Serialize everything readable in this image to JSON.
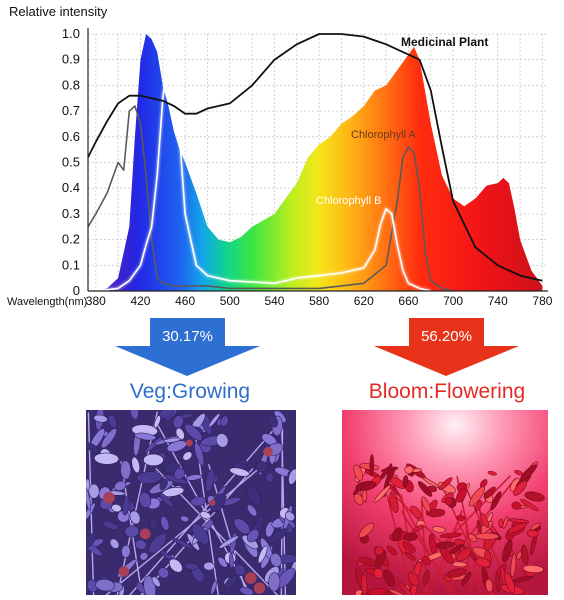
{
  "chart_data": {
    "type": "line",
    "ylabel": "Relative intensity",
    "xlabel": "Wavelength(nm)",
    "xlim": [
      373,
      785
    ],
    "ylim": [
      0,
      1.0
    ],
    "x_ticks": [
      380,
      420,
      460,
      500,
      540,
      580,
      620,
      660,
      700,
      740,
      780
    ],
    "y_ticks": [
      "0",
      "0.1",
      "0.2",
      "0.3",
      "0.4",
      "0.5",
      "0.6",
      "0.7",
      "0.8",
      "0.9",
      "1.0"
    ],
    "grid": true,
    "series": [
      {
        "name": "",
        "role": "LED spectrum (rainbow-filled area)",
        "x": [
          380,
          390,
          400,
          410,
          415,
          420,
          425,
          430,
          435,
          440,
          445,
          450,
          455,
          460,
          470,
          480,
          490,
          500,
          510,
          520,
          540,
          560,
          570,
          580,
          590,
          600,
          610,
          620,
          630,
          640,
          650,
          660,
          665,
          670,
          680,
          690,
          700,
          710,
          720,
          730,
          740,
          745,
          750,
          755,
          760,
          770,
          780
        ],
        "y": [
          0,
          0.01,
          0.05,
          0.25,
          0.6,
          0.9,
          1.0,
          0.98,
          0.93,
          0.8,
          0.72,
          0.62,
          0.55,
          0.5,
          0.38,
          0.25,
          0.2,
          0.19,
          0.21,
          0.25,
          0.3,
          0.42,
          0.52,
          0.57,
          0.6,
          0.65,
          0.68,
          0.72,
          0.78,
          0.8,
          0.86,
          0.92,
          0.95,
          0.9,
          0.65,
          0.45,
          0.36,
          0.33,
          0.36,
          0.41,
          0.42,
          0.44,
          0.42,
          0.32,
          0.2,
          0.08,
          0.02
        ]
      },
      {
        "name": "Medicinal Plant",
        "x": [
          373,
          380,
          390,
          400,
          410,
          420,
          430,
          440,
          450,
          460,
          470,
          480,
          500,
          520,
          540,
          560,
          580,
          600,
          620,
          640,
          650,
          660,
          670,
          680,
          690,
          700,
          720,
          740,
          760,
          780
        ],
        "y": [
          0.52,
          0.58,
          0.66,
          0.73,
          0.76,
          0.76,
          0.75,
          0.74,
          0.72,
          0.69,
          0.69,
          0.71,
          0.73,
          0.8,
          0.9,
          0.96,
          1.0,
          1.0,
          0.99,
          0.96,
          0.94,
          0.92,
          0.9,
          0.78,
          0.56,
          0.35,
          0.17,
          0.1,
          0.06,
          0.04
        ]
      },
      {
        "name": "Chlorophyll A",
        "x": [
          373,
          380,
          390,
          400,
          405,
          410,
          415,
          420,
          425,
          430,
          435,
          440,
          450,
          460,
          480,
          500,
          540,
          580,
          600,
          620,
          640,
          650,
          655,
          660,
          665,
          670,
          675,
          680,
          690,
          700
        ],
        "y": [
          0.25,
          0.3,
          0.38,
          0.5,
          0.47,
          0.7,
          0.72,
          0.65,
          0.45,
          0.2,
          0.05,
          0.03,
          0.02,
          0.02,
          0.02,
          0.01,
          0.01,
          0.01,
          0.02,
          0.03,
          0.1,
          0.35,
          0.52,
          0.56,
          0.54,
          0.4,
          0.15,
          0.04,
          0.01,
          0.0
        ]
      },
      {
        "name": "Chlorophyll B",
        "x": [
          380,
          400,
          410,
          420,
          425,
          430,
          435,
          440,
          445,
          450,
          455,
          460,
          470,
          480,
          500,
          540,
          560,
          580,
          600,
          620,
          630,
          635,
          640,
          645,
          650,
          655,
          660,
          670,
          680
        ],
        "y": [
          0.0,
          0.01,
          0.04,
          0.1,
          0.18,
          0.25,
          0.45,
          0.75,
          0.92,
          0.9,
          0.6,
          0.3,
          0.1,
          0.06,
          0.04,
          0.03,
          0.05,
          0.06,
          0.07,
          0.09,
          0.16,
          0.26,
          0.32,
          0.3,
          0.18,
          0.08,
          0.03,
          0.01,
          0.0
        ]
      }
    ],
    "annotations": [
      "Medicinal Plant",
      "Chlorophyll A",
      "Chlorophyll B"
    ]
  },
  "arrows": [
    {
      "percent": "30.17%",
      "color": "#2e6fd3"
    },
    {
      "percent": "56.20%",
      "color": "#e8321a"
    }
  ],
  "captions": {
    "veg": "Veg:Growing",
    "veg_color": "#2f6fc8",
    "bloom": "Bloom:Flowering",
    "bloom_color": "#e32b25"
  },
  "photos": {
    "veg": "purple-lit-plant",
    "bloom": "red-lit-plant"
  }
}
